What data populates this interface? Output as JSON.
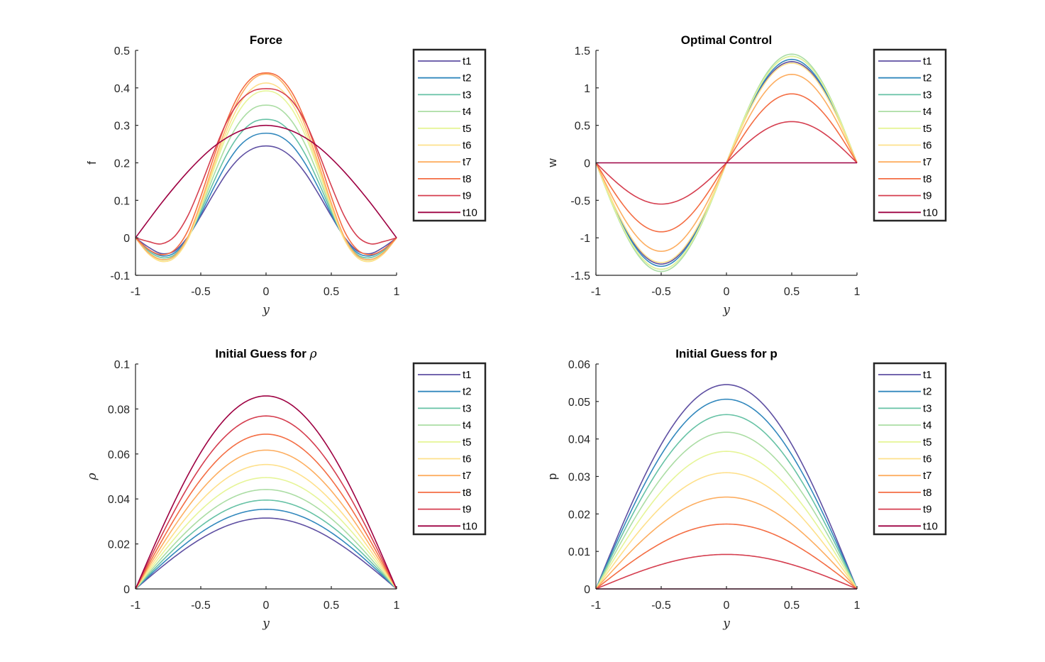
{
  "figure": {
    "background": "#ffffff",
    "axis_color": "#262626"
  },
  "colors": [
    "#5e4fa2",
    "#3288bd",
    "#66c2a5",
    "#abdda4",
    "#e6f598",
    "#fee08b",
    "#fdae61",
    "#f46d43",
    "#d53e4f",
    "#9e0142"
  ],
  "chart_data": [
    {
      "id": "force",
      "type": "line",
      "title": "Force",
      "title_math": "",
      "xlabel": "y",
      "ylabel": "f",
      "ylabel_style": "plain",
      "xlim": [
        -1,
        1
      ],
      "ylim": [
        -0.1,
        0.5
      ],
      "xticks": [
        -1,
        -0.5,
        0,
        0.5,
        1
      ],
      "xtick_labels": [
        "-1",
        "-0.5",
        "0",
        "0.5",
        "1"
      ],
      "yticks": [
        -0.1,
        0,
        0.1,
        0.2,
        0.3,
        0.4,
        0.5
      ],
      "ytick_labels": [
        "-0.1",
        "0",
        "0.1",
        "0.2",
        "0.3",
        "0.4",
        "0.5"
      ],
      "legend_position": "outside-right-top",
      "x": [
        -1,
        -0.9,
        -0.8,
        -0.7,
        -0.6,
        -0.5,
        -0.4,
        -0.3,
        -0.2,
        -0.1,
        0,
        0.1,
        0.2,
        0.3,
        0.4,
        0.5,
        0.6,
        0.7,
        0.8,
        0.9,
        1
      ],
      "series": [
        {
          "name": "t1",
          "values": [
            0,
            -0.025,
            -0.042,
            -0.035,
            0.002,
            0.058,
            0.118,
            0.173,
            0.214,
            0.238,
            0.245,
            0.238,
            0.214,
            0.173,
            0.118,
            0.058,
            0.002,
            -0.035,
            -0.042,
            -0.025,
            0
          ]
        },
        {
          "name": "t2",
          "values": [
            0,
            -0.031,
            -0.048,
            -0.04,
            0,
            0.063,
            0.134,
            0.198,
            0.246,
            0.272,
            0.279,
            0.272,
            0.246,
            0.198,
            0.134,
            0.063,
            0,
            -0.04,
            -0.048,
            -0.031,
            0
          ]
        },
        {
          "name": "t3",
          "values": [
            0,
            -0.035,
            -0.053,
            -0.045,
            -0.001,
            0.07,
            0.15,
            0.223,
            0.277,
            0.308,
            0.316,
            0.308,
            0.277,
            0.223,
            0.15,
            0.07,
            -0.001,
            -0.045,
            -0.053,
            -0.035,
            0
          ]
        },
        {
          "name": "t4",
          "values": [
            0,
            -0.039,
            -0.058,
            -0.049,
            -0.003,
            0.076,
            0.167,
            0.249,
            0.31,
            0.345,
            0.354,
            0.345,
            0.31,
            0.249,
            0.167,
            0.076,
            -0.003,
            -0.049,
            -0.058,
            -0.039,
            0
          ]
        },
        {
          "name": "t5",
          "values": [
            0,
            -0.042,
            -0.062,
            -0.053,
            -0.005,
            0.081,
            0.182,
            0.274,
            0.342,
            0.381,
            0.392,
            0.381,
            0.342,
            0.274,
            0.182,
            0.081,
            -0.005,
            -0.053,
            -0.062,
            -0.042,
            0
          ]
        },
        {
          "name": "t6",
          "values": [
            0,
            -0.043,
            -0.063,
            -0.053,
            -0.004,
            0.085,
            0.19,
            0.286,
            0.358,
            0.4,
            0.413,
            0.4,
            0.358,
            0.286,
            0.19,
            0.085,
            -0.004,
            -0.053,
            -0.063,
            -0.043,
            0
          ]
        },
        {
          "name": "t7",
          "values": [
            0,
            -0.04,
            -0.058,
            -0.048,
            0.002,
            0.093,
            0.2,
            0.299,
            0.376,
            0.423,
            0.437,
            0.423,
            0.376,
            0.299,
            0.2,
            0.093,
            0.002,
            -0.048,
            -0.058,
            -0.04,
            0
          ]
        },
        {
          "name": "t8",
          "values": [
            0,
            -0.031,
            -0.045,
            -0.032,
            0.018,
            0.11,
            0.216,
            0.313,
            0.387,
            0.429,
            0.44,
            0.429,
            0.387,
            0.313,
            0.216,
            0.11,
            0.018,
            -0.032,
            -0.045,
            -0.031,
            0
          ]
        },
        {
          "name": "t9",
          "values": [
            0,
            -0.01,
            -0.016,
            0.004,
            0.058,
            0.139,
            0.229,
            0.31,
            0.365,
            0.392,
            0.398,
            0.392,
            0.365,
            0.31,
            0.229,
            0.139,
            0.058,
            0.004,
            -0.016,
            -0.01,
            0
          ]
        },
        {
          "name": "t10",
          "values": [
            0,
            0.047,
            0.093,
            0.136,
            0.176,
            0.212,
            0.243,
            0.267,
            0.285,
            0.296,
            0.3,
            0.296,
            0.285,
            0.267,
            0.243,
            0.212,
            0.176,
            0.136,
            0.093,
            0.047,
            0
          ]
        }
      ]
    },
    {
      "id": "control",
      "type": "line",
      "title": "Optimal Control",
      "title_math": "",
      "xlabel": "y",
      "ylabel": "w",
      "ylabel_style": "plain",
      "xlim": [
        -1,
        1
      ],
      "ylim": [
        -1.5,
        1.5
      ],
      "xticks": [
        -1,
        -0.5,
        0,
        0.5,
        1
      ],
      "xtick_labels": [
        "-1",
        "-0.5",
        "0",
        "0.5",
        "1"
      ],
      "yticks": [
        -1.5,
        -1,
        -0.5,
        0,
        0.5,
        1,
        1.5
      ],
      "ytick_labels": [
        "-1.5",
        "-1",
        "-0.5",
        "0",
        "0.5",
        "1",
        "1.5"
      ],
      "legend_position": "outside-right-top",
      "curve": "sine",
      "series": [
        {
          "name": "t1",
          "amplitude": 1.35
        },
        {
          "name": "t2",
          "amplitude": 1.38
        },
        {
          "name": "t3",
          "amplitude": 1.42
        },
        {
          "name": "t4",
          "amplitude": 1.45
        },
        {
          "name": "t5",
          "amplitude": 1.42
        },
        {
          "name": "t6",
          "amplitude": 1.33
        },
        {
          "name": "t7",
          "amplitude": 1.18
        },
        {
          "name": "t8",
          "amplitude": 0.92
        },
        {
          "name": "t9",
          "amplitude": 0.55
        },
        {
          "name": "t10",
          "amplitude": 0
        }
      ]
    },
    {
      "id": "rho",
      "type": "line",
      "title": "Initial Guess for ",
      "title_math": "ρ",
      "xlabel": "y",
      "ylabel": "ρ",
      "ylabel_style": "math",
      "xlim": [
        -1,
        1
      ],
      "ylim": [
        0,
        0.1
      ],
      "xticks": [
        -1,
        -0.5,
        0,
        0.5,
        1
      ],
      "xtick_labels": [
        "-1",
        "-0.5",
        "0",
        "0.5",
        "1"
      ],
      "yticks": [
        0,
        0.02,
        0.04,
        0.06,
        0.08,
        0.1
      ],
      "ytick_labels": [
        "0",
        "0.02",
        "0.04",
        "0.06",
        "0.08",
        "0.1"
      ],
      "legend_position": "outside-right-top",
      "curve": "cosine",
      "series": [
        {
          "name": "t1",
          "amplitude": 0.0315
        },
        {
          "name": "t2",
          "amplitude": 0.0354
        },
        {
          "name": "t3",
          "amplitude": 0.0395
        },
        {
          "name": "t4",
          "amplitude": 0.0442
        },
        {
          "name": "t5",
          "amplitude": 0.0495
        },
        {
          "name": "t6",
          "amplitude": 0.0553
        },
        {
          "name": "t7",
          "amplitude": 0.0617
        },
        {
          "name": "t8",
          "amplitude": 0.0688
        },
        {
          "name": "t9",
          "amplitude": 0.0769
        },
        {
          "name": "t10",
          "amplitude": 0.0858
        }
      ]
    },
    {
      "id": "p",
      "type": "line",
      "title": "Initial Guess for p",
      "title_math": "",
      "xlabel": "y",
      "ylabel": "p",
      "ylabel_style": "plain",
      "xlim": [
        -1,
        1
      ],
      "ylim": [
        0,
        0.06
      ],
      "xticks": [
        -1,
        -0.5,
        0,
        0.5,
        1
      ],
      "xtick_labels": [
        "-1",
        "-0.5",
        "0",
        "0.5",
        "1"
      ],
      "yticks": [
        0,
        0.01,
        0.02,
        0.03,
        0.04,
        0.05,
        0.06
      ],
      "ytick_labels": [
        "0",
        "0.01",
        "0.02",
        "0.03",
        "0.04",
        "0.05",
        "0.06"
      ],
      "legend_position": "outside-right-top",
      "curve": "cosine",
      "series": [
        {
          "name": "t1",
          "amplitude": 0.0545
        },
        {
          "name": "t2",
          "amplitude": 0.0506
        },
        {
          "name": "t3",
          "amplitude": 0.0465
        },
        {
          "name": "t4",
          "amplitude": 0.0418
        },
        {
          "name": "t5",
          "amplitude": 0.0367
        },
        {
          "name": "t6",
          "amplitude": 0.031
        },
        {
          "name": "t7",
          "amplitude": 0.0245
        },
        {
          "name": "t8",
          "amplitude": 0.0173
        },
        {
          "name": "t9",
          "amplitude": 0.0092
        },
        {
          "name": "t10",
          "amplitude": 0
        }
      ]
    }
  ]
}
